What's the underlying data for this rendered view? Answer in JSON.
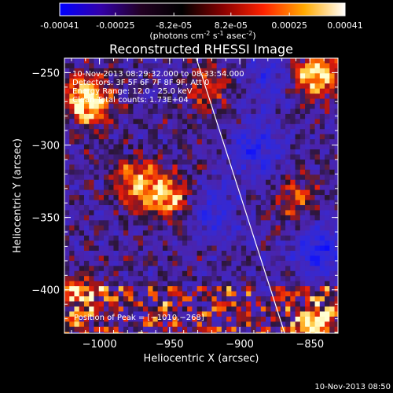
{
  "colorbar": {
    "ticks": [
      "-0.00041",
      "-0.00025",
      "-8.2e-05",
      "8.2e-05",
      "0.00025",
      "0.00041"
    ],
    "tick_values": [
      -0.00041,
      -0.00025,
      -8.2e-05,
      8.2e-05,
      0.00025,
      0.00041
    ],
    "range": [
      -0.00041,
      0.00041
    ],
    "units_main": "(photons cm",
    "units_exp1": "-2",
    "units_mid": " s",
    "units_exp2": "-1",
    "units_tail": " asec",
    "units_exp3": "-2",
    "units_close": ")",
    "colors": [
      "#0000ff",
      "#3300aa",
      "#220022",
      "#000000",
      "#880000",
      "#ff2200",
      "#ffaa00",
      "#ffffff"
    ]
  },
  "chart_data": {
    "type": "heatmap",
    "title": "Reconstructed RHESSI Image",
    "xlabel": "Heliocentric X (arcsec)",
    "ylabel": "Heliocentric Y (arcsec)",
    "xlim": [
      -1025,
      -830
    ],
    "ylim": [
      -430,
      -240
    ],
    "x_ticks": [
      -1000,
      -950,
      -900,
      -850
    ],
    "y_ticks": [
      -250,
      -300,
      -350,
      -400
    ],
    "x_tick_labels": [
      "−1000",
      "−950",
      "−900",
      "−850"
    ],
    "y_tick_labels": [
      "−250",
      "−300",
      "−350",
      "−400"
    ],
    "limb_line": {
      "start": [
        -931,
        -240
      ],
      "end": [
        -868,
        -430
      ]
    },
    "peak": {
      "x": -1010,
      "y": -268
    },
    "hot_regions": [
      {
        "x": -1010,
        "y": -268,
        "level": 1.0
      },
      {
        "x": -848,
        "y": -250,
        "level": 0.95
      },
      {
        "x": -975,
        "y": -325,
        "level": 0.7
      },
      {
        "x": -952,
        "y": -335,
        "level": 0.75
      },
      {
        "x": -848,
        "y": -425,
        "level": 0.8
      },
      {
        "x": -1015,
        "y": -400,
        "level": 0.5
      },
      {
        "x": -925,
        "y": -260,
        "level": 0.5
      },
      {
        "x": -860,
        "y": -335,
        "level": 0.45
      }
    ],
    "cold_regions": [
      {
        "x": -890,
        "y": -300,
        "level": 0.5
      },
      {
        "x": -845,
        "y": -370,
        "level": 0.6
      },
      {
        "x": -920,
        "y": -345,
        "level": 0.45
      },
      {
        "x": -880,
        "y": -250,
        "level": 0.4
      }
    ]
  },
  "annotations": {
    "time_range": "10-Nov-2013 08:29:32.000 to 08:33:54.000",
    "detectors": "Detectors: 3F 5F 6F 7F 8F 9F, Att 0",
    "energy": "Energy Range: 12.0 - 25.0 keV",
    "method": "Clean     Total counts: 1.73E+04",
    "peak_label": "Position of Peak = [−1010,−268]"
  },
  "footer": {
    "timestamp": "10-Nov-2013 08:50"
  }
}
